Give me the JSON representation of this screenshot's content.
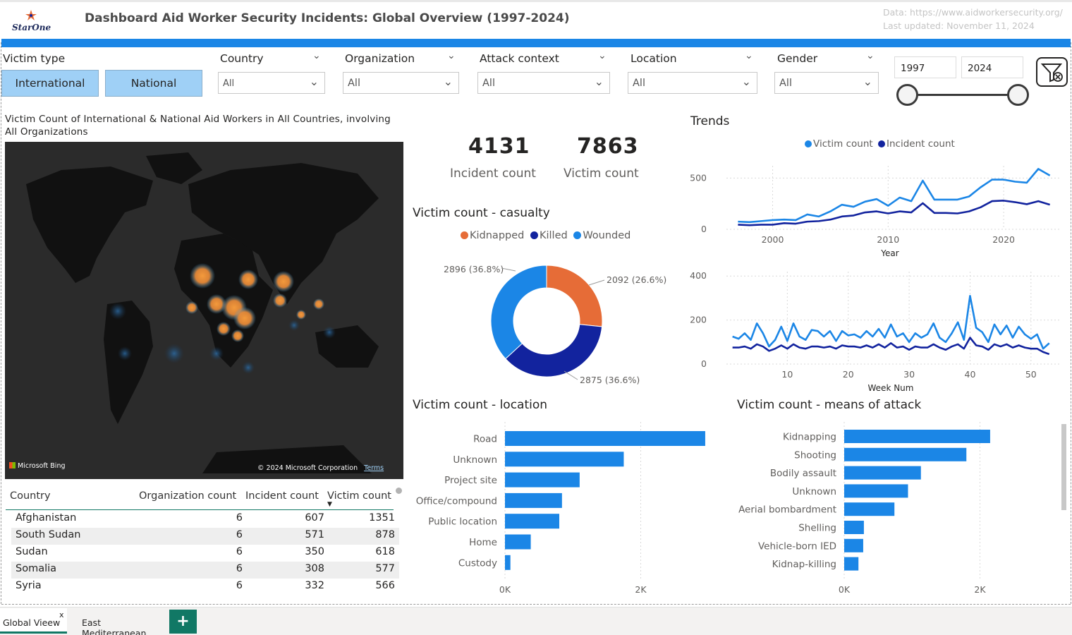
{
  "header": {
    "logo_text": "StarOne",
    "title": "Dashboard Aid Worker Security Incidents: Global Overview (1997-2024)",
    "source": "Data: https://www.aidworkersecurity.org/",
    "updated": "Last updated: November 11, 2024"
  },
  "slicers": {
    "victim_type": {
      "label": "Victim type",
      "options": [
        "International",
        "National"
      ]
    },
    "country": {
      "label": "Country",
      "value": "All"
    },
    "organization": {
      "label": "Organization",
      "value": "All"
    },
    "attack_context": {
      "label": "Attack context",
      "value": "All"
    },
    "location": {
      "label": "Location",
      "value": "All"
    },
    "gender": {
      "label": "Gender",
      "value": "All"
    },
    "year_from": "1997",
    "year_to": "2024"
  },
  "map": {
    "title": "Victim Count of International & National Aid Workers in All Countries, involving All Organizations",
    "bing": "Microsoft Bing",
    "copyright": "© 2024 Microsoft Corporation",
    "terms": "Terms"
  },
  "table": {
    "headers": [
      "Country",
      "Organization count",
      "Incident count",
      "Victim count"
    ],
    "rows": [
      [
        "Afghanistan",
        "6",
        "607",
        "1351"
      ],
      [
        "South Sudan",
        "6",
        "571",
        "878"
      ],
      [
        "Sudan",
        "6",
        "350",
        "618"
      ],
      [
        "Somalia",
        "6",
        "308",
        "577"
      ],
      [
        "Syria",
        "6",
        "332",
        "566"
      ]
    ]
  },
  "kpis": {
    "incident_value": "4131",
    "incident_label": "Incident count",
    "victim_value": "7863",
    "victim_label": "Victim count"
  },
  "casualty": {
    "title": "Victim count - casualty",
    "legend": [
      "Kidnapped",
      "Killed",
      "Wounded"
    ],
    "colors": [
      "#e66c37",
      "#12239e",
      "#1b86e6"
    ],
    "values": [
      2092,
      2875,
      2896
    ],
    "labels": [
      "2092 (26.6%)",
      "2875 (36.6%)",
      "2896 (36.8%)"
    ]
  },
  "trends": {
    "title": "Trends",
    "legend": [
      "Victim count",
      "Incident count"
    ],
    "colors": [
      "#1b86e6",
      "#12239e"
    ],
    "year_chart": {
      "xlabel": "Year",
      "x_ticks": [
        "2000",
        "2010",
        "2020"
      ],
      "y_ticks": [
        "0",
        "500"
      ]
    },
    "week_chart": {
      "xlabel": "Week Num",
      "x_ticks": [
        "10",
        "20",
        "30",
        "40",
        "50"
      ],
      "y_ticks": [
        "0",
        "200",
        "400"
      ]
    }
  },
  "chart_data": [
    {
      "type": "line",
      "xlabel": "Year",
      "ylabel": "",
      "x": [
        1997,
        1998,
        1999,
        2000,
        2001,
        2002,
        2003,
        2004,
        2005,
        2006,
        2007,
        2008,
        2009,
        2010,
        2011,
        2012,
        2013,
        2014,
        2015,
        2016,
        2017,
        2018,
        2019,
        2020,
        2021,
        2022,
        2023,
        2024
      ],
      "series": [
        {
          "name": "Victim count",
          "values": [
            75,
            70,
            80,
            90,
            95,
            90,
            145,
            125,
            175,
            240,
            220,
            270,
            295,
            230,
            310,
            275,
            475,
            290,
            290,
            290,
            320,
            410,
            485,
            485,
            465,
            455,
            590,
            525
          ]
        },
        {
          "name": "Incident count",
          "values": [
            45,
            40,
            45,
            45,
            60,
            55,
            75,
            80,
            95,
            125,
            135,
            165,
            175,
            155,
            175,
            165,
            255,
            160,
            160,
            155,
            175,
            215,
            275,
            280,
            265,
            245,
            275,
            240
          ]
        }
      ],
      "ylim": [
        0,
        620
      ],
      "xlim": [
        1996,
        2025
      ]
    },
    {
      "type": "line",
      "xlabel": "Week Num",
      "ylabel": "",
      "x": [
        1,
        2,
        3,
        4,
        5,
        6,
        7,
        8,
        9,
        10,
        11,
        12,
        13,
        14,
        15,
        16,
        17,
        18,
        19,
        20,
        21,
        22,
        23,
        24,
        25,
        26,
        27,
        28,
        29,
        30,
        31,
        32,
        33,
        34,
        35,
        36,
        37,
        38,
        39,
        40,
        41,
        42,
        43,
        44,
        45,
        46,
        47,
        48,
        49,
        50,
        51,
        52,
        53
      ],
      "series": [
        {
          "name": "Victim count",
          "values": [
            125,
            115,
            140,
            110,
            185,
            140,
            80,
            110,
            170,
            105,
            185,
            125,
            110,
            155,
            150,
            125,
            150,
            105,
            150,
            130,
            135,
            120,
            150,
            125,
            160,
            120,
            180,
            125,
            140,
            100,
            140,
            120,
            135,
            185,
            120,
            100,
            140,
            190,
            110,
            310,
            165,
            145,
            100,
            180,
            135,
            175,
            120,
            170,
            135,
            115,
            135,
            70,
            95
          ]
        },
        {
          "name": "Incident count",
          "values": [
            75,
            75,
            80,
            70,
            90,
            80,
            60,
            70,
            85,
            70,
            90,
            75,
            70,
            80,
            80,
            75,
            80,
            70,
            85,
            80,
            80,
            75,
            85,
            75,
            90,
            75,
            95,
            75,
            80,
            65,
            80,
            75,
            75,
            90,
            75,
            65,
            80,
            90,
            70,
            120,
            85,
            80,
            65,
            90,
            80,
            90,
            75,
            85,
            75,
            70,
            70,
            55,
            45
          ]
        }
      ],
      "ylim": [
        0,
        420
      ],
      "xlim": [
        0,
        55
      ]
    },
    {
      "type": "pie",
      "title": "Victim count - casualty",
      "categories": [
        "Kidnapped",
        "Killed",
        "Wounded"
      ],
      "values": [
        2092,
        2875,
        2896
      ]
    },
    {
      "type": "bar",
      "title": "Victim count - location",
      "categories": [
        "Road",
        "Unknown",
        "Project site",
        "Office/compound",
        "Public location",
        "Home",
        "Custody"
      ],
      "values": [
        2950,
        1750,
        1100,
        840,
        800,
        380,
        80
      ],
      "x_ticks": [
        "0K",
        "2K"
      ],
      "xlim": [
        0,
        3200
      ]
    },
    {
      "type": "bar",
      "title": "Victim count - means of attack",
      "categories": [
        "Kidnapping",
        "Shooting",
        "Bodily assault",
        "Unknown",
        "Aerial bombardment",
        "Shelling",
        "Vehicle-born IED",
        "Kidnap-killing"
      ],
      "values": [
        2150,
        1800,
        1130,
        940,
        740,
        290,
        280,
        210
      ],
      "x_ticks": [
        "0K",
        "2K"
      ],
      "xlim": [
        0,
        3200
      ]
    }
  ],
  "tabs": [
    "Global Vieew",
    "East Mediterranean"
  ],
  "tab_close": "x",
  "add_tab": "+"
}
